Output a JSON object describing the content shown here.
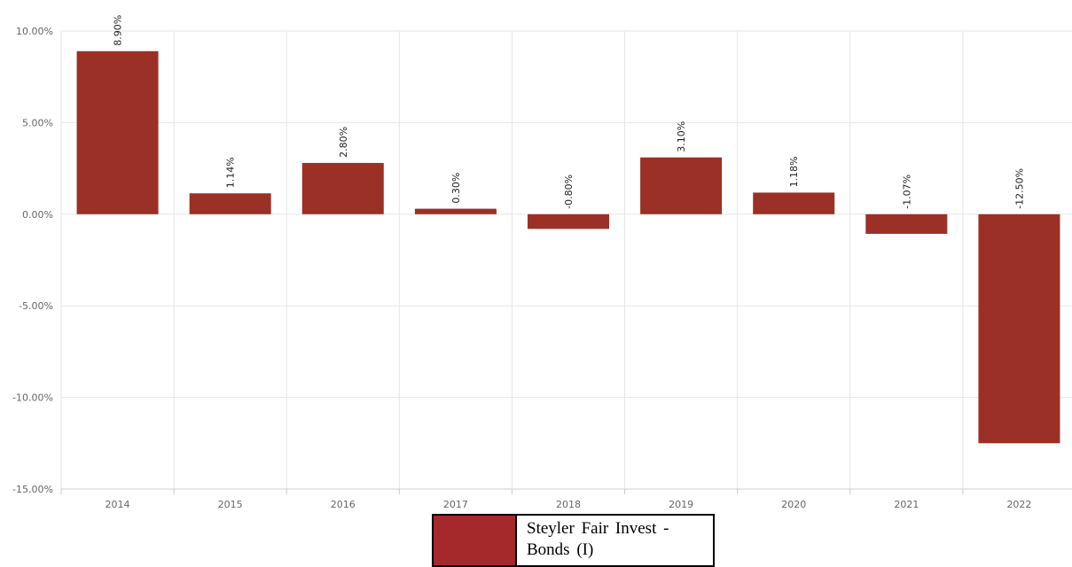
{
  "chart_data": {
    "type": "bar",
    "categories": [
      "2014",
      "2015",
      "2016",
      "2017",
      "2018",
      "2019",
      "2020",
      "2021",
      "2022"
    ],
    "series": [
      {
        "name": "Steyler Fair Invest - Bonds (I)",
        "values": [
          8.9,
          1.14,
          2.8,
          0.3,
          -0.8,
          3.1,
          1.18,
          -1.07,
          -12.5
        ],
        "labels": [
          "8.90%",
          "1.14%",
          "2.80%",
          "0.30%",
          "-0.80%",
          "3.10%",
          "1.18%",
          "-1.07%",
          "-12.50%"
        ]
      }
    ],
    "y_ticks": [
      10,
      5,
      0,
      -5,
      -10,
      -15
    ],
    "y_tick_labels": [
      "10.00%",
      "5.00%",
      "0.00%",
      "-5.00%",
      "-10.00%",
      "-15.00%"
    ],
    "ylim": [
      -15,
      10
    ],
    "grid": true,
    "legend_position": "bottom-center",
    "colors": {
      "bar": "#9b3026",
      "legend_swatch": "#a5282a",
      "grid": "#e6e6e6"
    }
  },
  "legend": {
    "label": "Steyler Fair Invest - Bonds (I)"
  }
}
